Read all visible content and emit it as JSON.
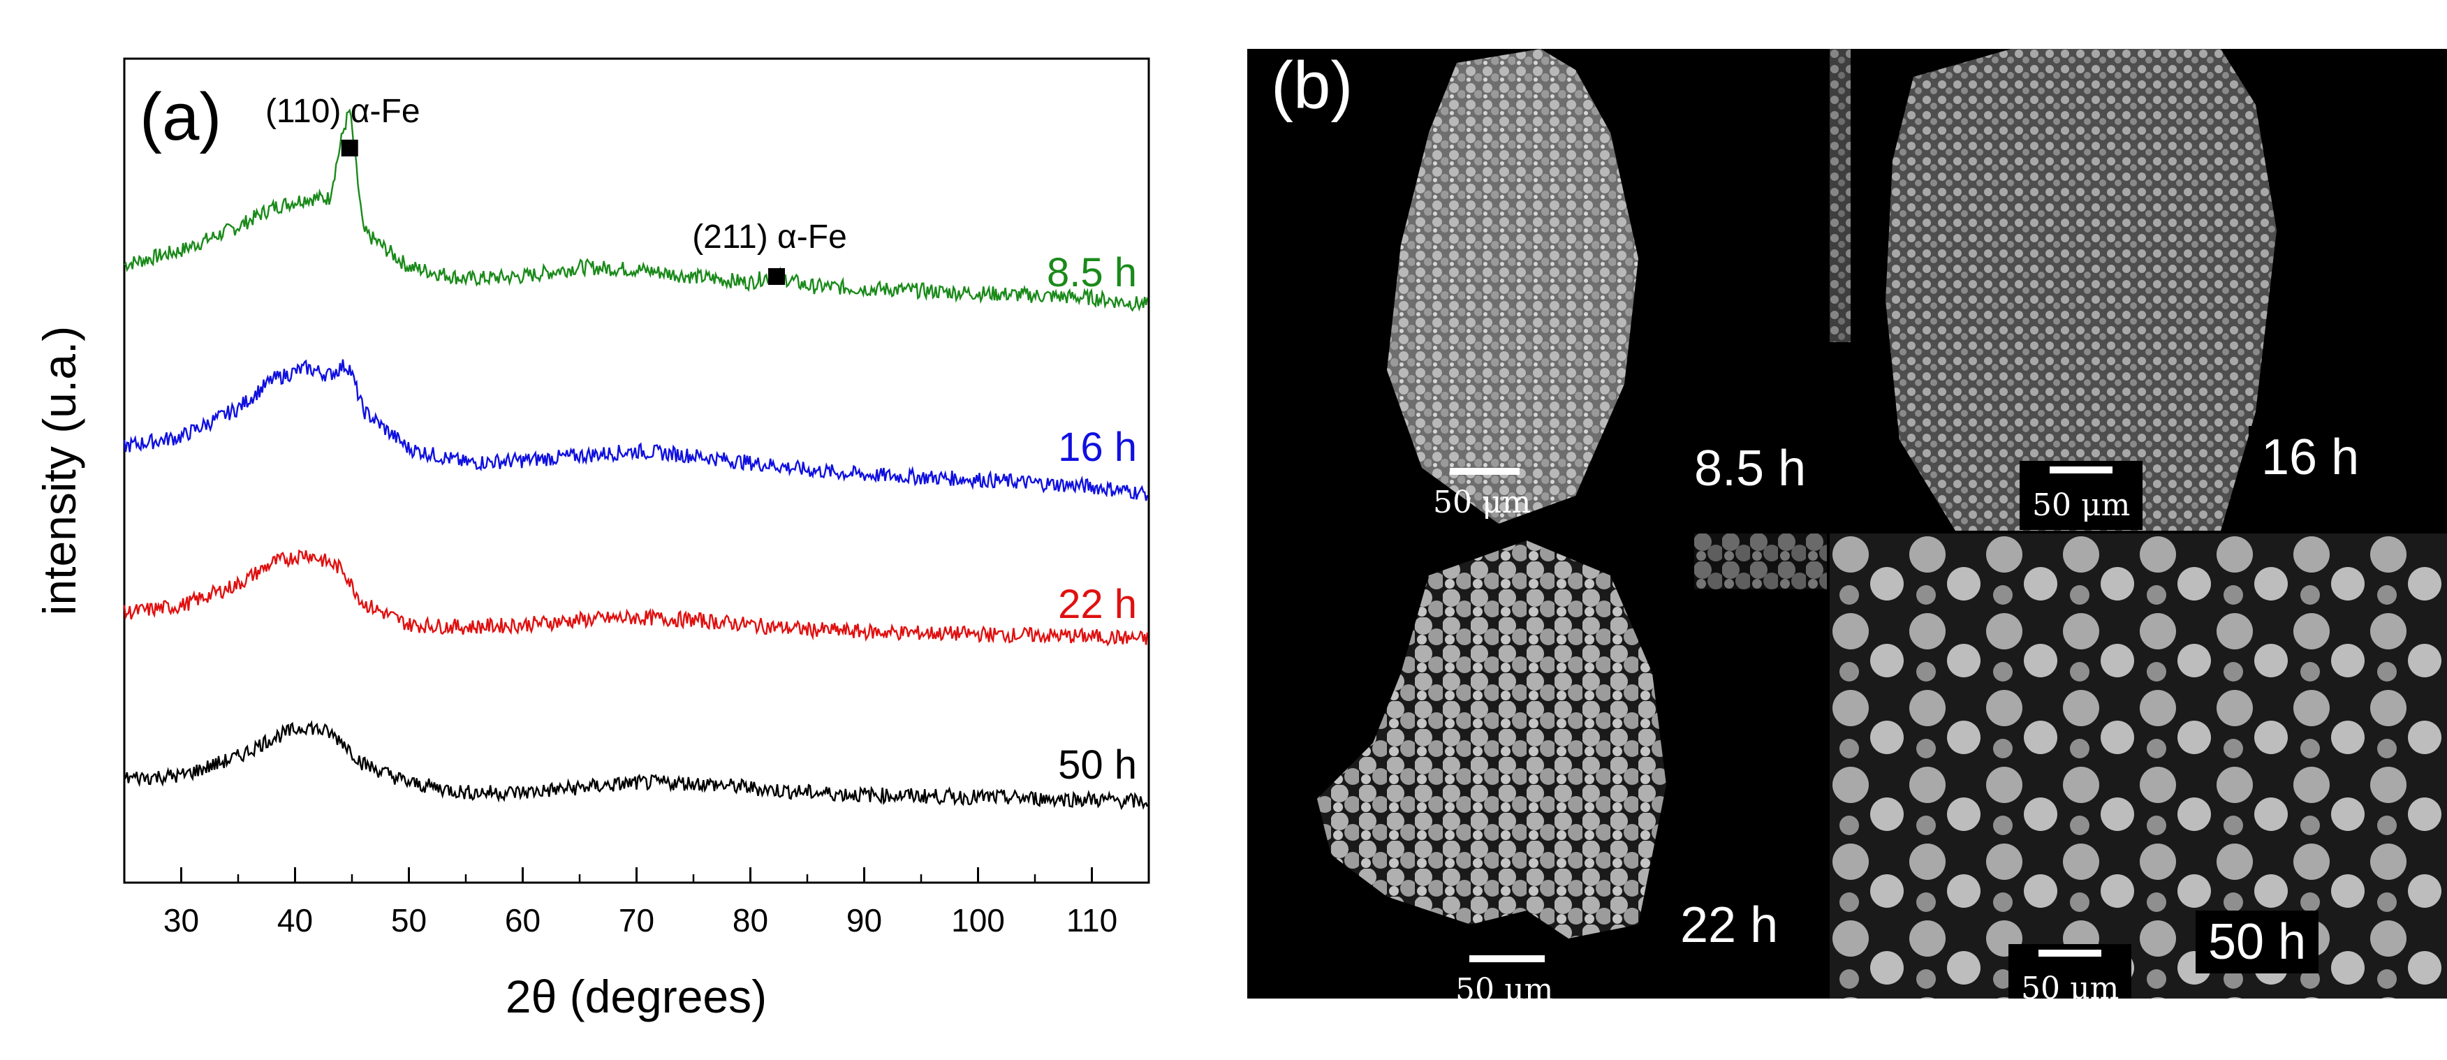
{
  "panel_a": {
    "label": "(a)",
    "xlabel": "2θ (degrees)",
    "ylabel": "intensity (u.a.)",
    "peak_110": "(110) α-Fe",
    "peak_211": "(211) α-Fe"
  },
  "panel_b": {
    "label": "(b)",
    "images": [
      {
        "time": "8.5 h",
        "scale": "50 μm"
      },
      {
        "time": "16 h",
        "scale": "50 μm"
      },
      {
        "time": "22 h",
        "scale": "50 μm"
      },
      {
        "time": "50 h",
        "scale": "50 μm"
      }
    ]
  },
  "chart_data": {
    "type": "line",
    "xlabel": "2θ (degrees)",
    "ylabel": "intensity (u.a.)",
    "xlim": [
      25,
      115
    ],
    "xticks": [
      30,
      40,
      50,
      60,
      70,
      80,
      90,
      100,
      110
    ],
    "series_shape": {
      "x": [
        25,
        30,
        35,
        38,
        41,
        43,
        44.3,
        44.8,
        46,
        50,
        55,
        60,
        65,
        70,
        75,
        80,
        82,
        85,
        90,
        100,
        110,
        115
      ],
      "note_units": "relative intensity"
    },
    "series": [
      {
        "name": "8.5 h",
        "color": "#1a8a1a",
        "y": [
          0.3,
          0.42,
          0.62,
          0.78,
          0.86,
          0.86,
          1.45,
          1.6,
          0.58,
          0.28,
          0.18,
          0.2,
          0.28,
          0.26,
          0.2,
          0.15,
          0.22,
          0.12,
          0.1,
          0.06,
          0.02,
          -0.04
        ]
      },
      {
        "name": "16 h",
        "color": "#1010e0",
        "y": [
          0.3,
          0.38,
          0.62,
          0.86,
          0.96,
          0.9,
          0.98,
          0.96,
          0.6,
          0.28,
          0.16,
          0.18,
          0.22,
          0.26,
          0.22,
          0.16,
          0.14,
          0.1,
          0.06,
          0.02,
          -0.04,
          -0.1
        ]
      },
      {
        "name": "22 h",
        "color": "#e01010",
        "y": [
          0.22,
          0.28,
          0.46,
          0.64,
          0.72,
          0.64,
          0.58,
          0.48,
          0.3,
          0.12,
          0.1,
          0.12,
          0.16,
          0.18,
          0.16,
          0.12,
          0.1,
          0.08,
          0.06,
          0.04,
          0.02,
          0.0
        ]
      },
      {
        "name": "50 h",
        "color": "#000000",
        "y": [
          0.18,
          0.2,
          0.36,
          0.52,
          0.62,
          0.56,
          0.48,
          0.42,
          0.3,
          0.14,
          0.06,
          0.06,
          0.1,
          0.14,
          0.14,
          0.1,
          0.08,
          0.06,
          0.04,
          0.02,
          0.0,
          -0.02
        ]
      }
    ],
    "annotations": [
      {
        "text": "(110) α-Fe",
        "x": 44.8,
        "marker": "square"
      },
      {
        "text": "(211) α-Fe",
        "x": 82.3,
        "marker": "square"
      }
    ]
  }
}
